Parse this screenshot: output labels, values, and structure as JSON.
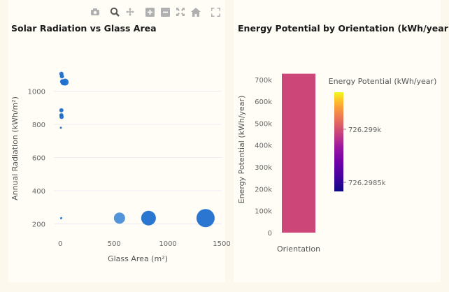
{
  "modebar": {
    "icons": [
      "camera-icon",
      "zoom-icon",
      "pan-icon",
      "zoom-in-icon",
      "zoom-out-icon",
      "autoscale-icon",
      "reset-axes-icon",
      "fullscreen-icon"
    ]
  },
  "colors": {
    "page_bg": "#fdf8ee",
    "panel_bg": "#fffdf6",
    "scatter_point": "#1f6fcf",
    "scatter_point_light": "#4a8fd8",
    "bar_fill": "#cc4778",
    "colorbar_top": "#f0f921",
    "colorbar_bottom": "#0d0887"
  },
  "chart_data": [
    {
      "type": "scatter",
      "title": "Solar Radiation vs Glass Area",
      "xlabel": "Glass Area (m²)",
      "ylabel": "Annual Radiation (kWh/m²)",
      "xlim": [
        -60,
        1500
      ],
      "ylim": [
        160,
        1150
      ],
      "x_ticks": [
        "0",
        "500",
        "1000",
        "1500"
      ],
      "x_tick_values": [
        0,
        500,
        1000,
        1500
      ],
      "y_ticks": [
        "200",
        "400",
        "600",
        "800",
        "1000"
      ],
      "y_tick_values": [
        200,
        400,
        600,
        800,
        1000
      ],
      "grid": true,
      "points": [
        {
          "x": 10,
          "y": 1105,
          "size": 6
        },
        {
          "x": 15,
          "y": 1090,
          "size": 6
        },
        {
          "x": 20,
          "y": 1058,
          "size": 7
        },
        {
          "x": 30,
          "y": 1052,
          "size": 8
        },
        {
          "x": 45,
          "y": 1055,
          "size": 10
        },
        {
          "x": 10,
          "y": 885,
          "size": 6
        },
        {
          "x": 10,
          "y": 855,
          "size": 6
        },
        {
          "x": 12,
          "y": 845,
          "size": 6
        },
        {
          "x": 5,
          "y": 780,
          "size": 3
        },
        {
          "x": 8,
          "y": 235,
          "size": 3
        },
        {
          "x": 550,
          "y": 235,
          "size": 16,
          "shade": "light"
        },
        {
          "x": 820,
          "y": 235,
          "size": 21
        },
        {
          "x": 1350,
          "y": 235,
          "size": 26
        }
      ]
    },
    {
      "type": "bar",
      "title": "Energy Potential by Orientation (kWh/year)",
      "xlabel": "",
      "ylabel": "Energy Potential (kWh/year)",
      "categories": [
        "Orientation"
      ],
      "values": [
        726299
      ],
      "ylim": [
        0,
        760000
      ],
      "y_ticks": [
        "0",
        "100k",
        "200k",
        "300k",
        "400k",
        "500k",
        "600k",
        "700k"
      ],
      "y_tick_values": [
        0,
        100000,
        200000,
        300000,
        400000,
        500000,
        600000,
        700000
      ],
      "colorbar": {
        "title": "Energy Potential (kWh/year)",
        "tick_labels": [
          "726.299k",
          "726.2985k"
        ],
        "colorscale": "plasma"
      }
    }
  ]
}
